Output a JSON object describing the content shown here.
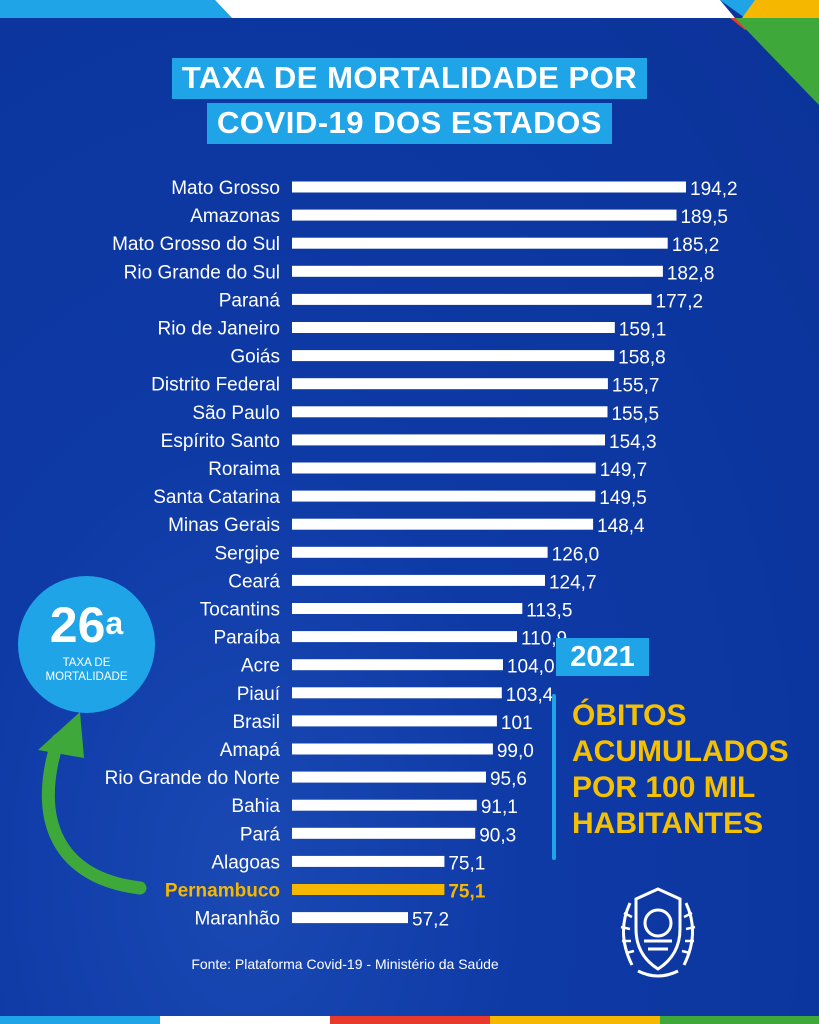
{
  "title": [
    "TAXA DE MORTALIDADE POR",
    "COVID-19 DOS ESTADOS"
  ],
  "rank": {
    "number": "26",
    "suffix": "a",
    "caption": "TAXA DE MORTALIDADE"
  },
  "year": "2021",
  "side_text": [
    "ÓBITOS",
    "ACUMULADOS",
    "POR 100 MIL",
    "HABITANTES"
  ],
  "source": "Fonte: Plataforma Covid-19 - Ministério da Saúde",
  "colors": {
    "background": "#0e3aa6",
    "accent_blue": "#1fa4e8",
    "highlight": "#f5b700",
    "bar": "#ffffff",
    "green": "#3ea93a"
  },
  "icons": [
    "pernambuco-coat-of-arms-icon",
    "curved-arrow-icon"
  ],
  "chart_data": {
    "type": "bar",
    "orientation": "horizontal",
    "categories": [
      "Mato Grosso",
      "Amazonas",
      "Mato Grosso do Sul",
      "Rio Grande do Sul",
      "Paraná",
      "Rio de Janeiro",
      "Goiás",
      "Distrito Federal",
      "São Paulo",
      "Espírito Santo",
      "Roraima",
      "Santa Catarina",
      "Minas Gerais",
      "Sergipe",
      "Ceará",
      "Tocantins",
      "Paraíba",
      "Acre",
      "Piauí",
      "Brasil",
      "Amapá",
      "Rio Grande do Norte",
      "Bahia",
      "Pará",
      "Alagoas",
      "Pernambuco",
      "Maranhão"
    ],
    "values": [
      194.2,
      189.5,
      185.2,
      182.8,
      177.2,
      159.1,
      158.8,
      155.7,
      155.5,
      154.3,
      149.7,
      149.5,
      148.4,
      126.0,
      124.7,
      113.5,
      110.9,
      104.0,
      103.4,
      101,
      99.0,
      95.6,
      91.1,
      90.3,
      75.1,
      75.1,
      57.2
    ],
    "value_labels": [
      "194,2",
      "189,5",
      "185,2",
      "182,8",
      "177,2",
      "159,1",
      "158,8",
      "155,7",
      "155,5",
      "154,3",
      "149,7",
      "149,5",
      "148,4",
      "126,0",
      "124,7",
      "113,5",
      "110,9",
      "104,0",
      "103,4",
      "101",
      "99,0",
      "95,6",
      "91,1",
      "90,3",
      "75,1",
      "75,1",
      "57,2"
    ],
    "highlight": "Pernambuco",
    "xlim": [
      0,
      194.2
    ]
  }
}
